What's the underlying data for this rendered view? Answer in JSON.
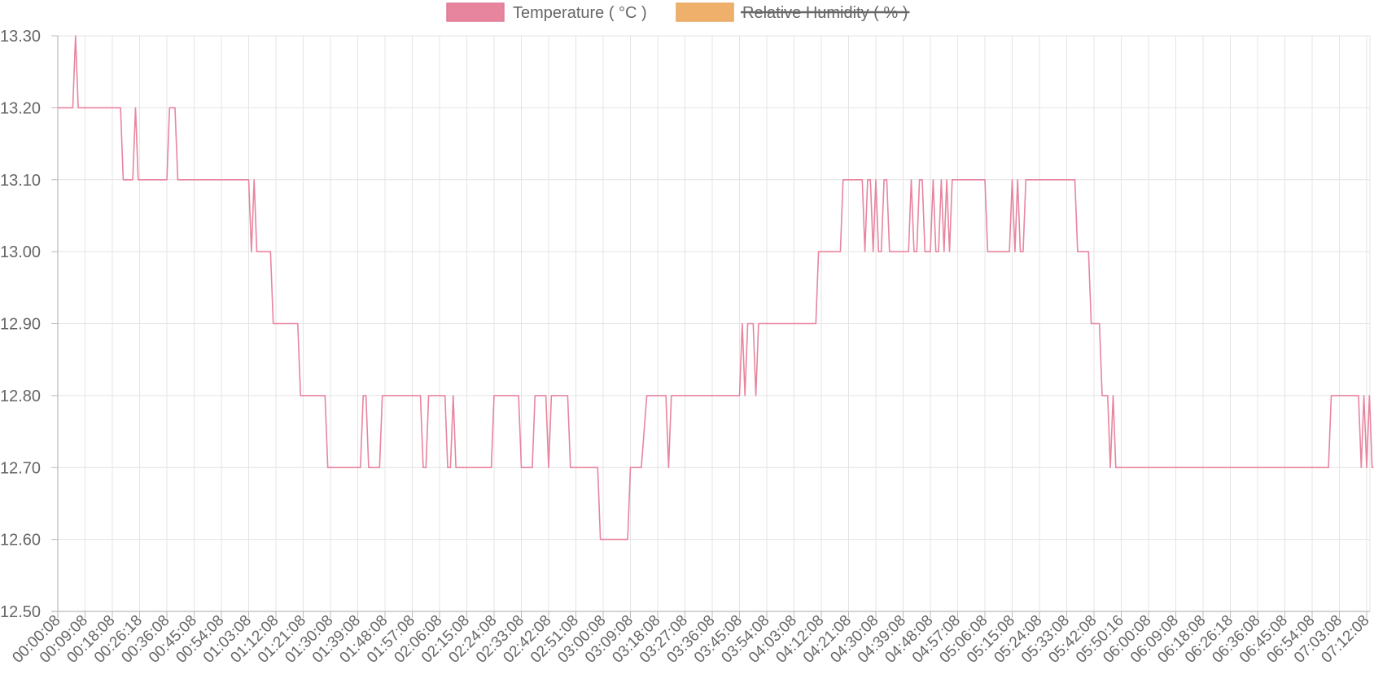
{
  "chart_data": {
    "type": "line",
    "legend": {
      "position": "top",
      "items": [
        {
          "label": "Temperature ( °C )",
          "color": "#e7859f",
          "hidden": false
        },
        {
          "label": "Relative Humidity ( % )",
          "color": "#efb06b",
          "hidden": true
        }
      ]
    },
    "y_axis": {
      "min": 12.5,
      "max": 13.3,
      "step": 0.1,
      "tick_labels": [
        "13.30",
        "13.20",
        "13.10",
        "13.00",
        "12.90",
        "12.80",
        "12.70",
        "12.60",
        "12.50"
      ]
    },
    "x_axis": {
      "tick_labels": [
        "00:00:08",
        "00:09:08",
        "00:18:08",
        "00:26:18",
        "00:36:08",
        "00:45:08",
        "00:54:08",
        "01:03:08",
        "01:12:08",
        "01:21:08",
        "01:30:08",
        "01:39:08",
        "01:48:08",
        "01:57:08",
        "02:06:08",
        "02:15:08",
        "02:24:08",
        "02:33:08",
        "02:42:08",
        "02:51:08",
        "03:00:08",
        "03:09:08",
        "03:18:08",
        "03:27:08",
        "03:36:08",
        "03:45:08",
        "03:54:08",
        "04:03:08",
        "04:12:08",
        "04:21:08",
        "04:30:08",
        "04:39:08",
        "04:48:08",
        "04:57:08",
        "05:06:08",
        "05:15:08",
        "05:24:08",
        "05:33:08",
        "05:42:08",
        "05:50:16",
        "06:00:08",
        "06:09:08",
        "06:18:08",
        "06:26:18",
        "06:36:08",
        "06:45:08",
        "06:54:08",
        "07:03:08",
        "07:12:08"
      ],
      "tick_positions": [
        0,
        1,
        2,
        3,
        4,
        5,
        6,
        7,
        8,
        9,
        10,
        11,
        12,
        13,
        14,
        15,
        16,
        17,
        18,
        19,
        20,
        21,
        22,
        23,
        24,
        25,
        26,
        27,
        28,
        29,
        30,
        31,
        32,
        33,
        34,
        35,
        36,
        37,
        38,
        39,
        40,
        41,
        42,
        43,
        44,
        45,
        46,
        47,
        48
      ],
      "max_index": 48.25
    },
    "grid": true,
    "series": [
      {
        "name": "Temperature ( °C )",
        "color": "#e7859f",
        "points": [
          [
            0,
            13.2
          ],
          [
            0.55,
            13.2
          ],
          [
            0.65,
            13.3
          ],
          [
            0.75,
            13.2
          ],
          [
            2.3,
            13.2
          ],
          [
            2.4,
            13.1
          ],
          [
            2.75,
            13.1
          ],
          [
            2.85,
            13.2
          ],
          [
            2.95,
            13.1
          ],
          [
            4.0,
            13.1
          ],
          [
            4.1,
            13.2
          ],
          [
            4.3,
            13.2
          ],
          [
            4.4,
            13.1
          ],
          [
            7.0,
            13.1
          ],
          [
            7.1,
            13.0
          ],
          [
            7.2,
            13.1
          ],
          [
            7.3,
            13.0
          ],
          [
            7.8,
            13.0
          ],
          [
            7.9,
            12.9
          ],
          [
            8.8,
            12.9
          ],
          [
            8.9,
            12.8
          ],
          [
            9.8,
            12.8
          ],
          [
            9.9,
            12.7
          ],
          [
            11.1,
            12.7
          ],
          [
            11.2,
            12.8
          ],
          [
            11.3,
            12.8
          ],
          [
            11.4,
            12.7
          ],
          [
            11.8,
            12.7
          ],
          [
            11.9,
            12.8
          ],
          [
            13.3,
            12.8
          ],
          [
            13.4,
            12.7
          ],
          [
            13.5,
            12.7
          ],
          [
            13.6,
            12.8
          ],
          [
            14.2,
            12.8
          ],
          [
            14.3,
            12.7
          ],
          [
            14.4,
            12.7
          ],
          [
            14.5,
            12.8
          ],
          [
            14.6,
            12.7
          ],
          [
            15.9,
            12.7
          ],
          [
            16.0,
            12.8
          ],
          [
            16.9,
            12.8
          ],
          [
            17.0,
            12.7
          ],
          [
            17.4,
            12.7
          ],
          [
            17.5,
            12.8
          ],
          [
            17.9,
            12.8
          ],
          [
            18.0,
            12.7
          ],
          [
            18.1,
            12.8
          ],
          [
            18.7,
            12.8
          ],
          [
            18.8,
            12.7
          ],
          [
            19.8,
            12.7
          ],
          [
            19.9,
            12.6
          ],
          [
            20.9,
            12.6
          ],
          [
            21.0,
            12.7
          ],
          [
            21.4,
            12.7
          ],
          [
            21.6,
            12.8
          ],
          [
            22.3,
            12.8
          ],
          [
            22.4,
            12.7
          ],
          [
            22.5,
            12.8
          ],
          [
            25.0,
            12.8
          ],
          [
            25.1,
            12.9
          ],
          [
            25.2,
            12.8
          ],
          [
            25.3,
            12.9
          ],
          [
            25.5,
            12.9
          ],
          [
            25.6,
            12.8
          ],
          [
            25.7,
            12.9
          ],
          [
            27.8,
            12.9
          ],
          [
            27.9,
            13.0
          ],
          [
            28.7,
            13.0
          ],
          [
            28.8,
            13.1
          ],
          [
            29.5,
            13.1
          ],
          [
            29.6,
            13.0
          ],
          [
            29.7,
            13.1
          ],
          [
            29.8,
            13.1
          ],
          [
            29.9,
            13.0
          ],
          [
            30.0,
            13.1
          ],
          [
            30.1,
            13.0
          ],
          [
            30.2,
            13.0
          ],
          [
            30.3,
            13.1
          ],
          [
            30.4,
            13.1
          ],
          [
            30.5,
            13.0
          ],
          [
            31.2,
            13.0
          ],
          [
            31.3,
            13.1
          ],
          [
            31.4,
            13.0
          ],
          [
            31.5,
            13.0
          ],
          [
            31.6,
            13.1
          ],
          [
            31.7,
            13.1
          ],
          [
            31.8,
            13.0
          ],
          [
            32.0,
            13.0
          ],
          [
            32.1,
            13.1
          ],
          [
            32.2,
            13.0
          ],
          [
            32.3,
            13.0
          ],
          [
            32.4,
            13.1
          ],
          [
            32.5,
            13.0
          ],
          [
            32.6,
            13.1
          ],
          [
            32.7,
            13.0
          ],
          [
            32.8,
            13.1
          ],
          [
            34.0,
            13.1
          ],
          [
            34.1,
            13.0
          ],
          [
            34.9,
            13.0
          ],
          [
            35.0,
            13.1
          ],
          [
            35.1,
            13.0
          ],
          [
            35.2,
            13.1
          ],
          [
            35.3,
            13.0
          ],
          [
            35.4,
            13.0
          ],
          [
            35.5,
            13.1
          ],
          [
            37.3,
            13.1
          ],
          [
            37.4,
            13.0
          ],
          [
            37.8,
            13.0
          ],
          [
            37.9,
            12.9
          ],
          [
            38.2,
            12.9
          ],
          [
            38.3,
            12.8
          ],
          [
            38.5,
            12.8
          ],
          [
            38.6,
            12.7
          ],
          [
            38.7,
            12.8
          ],
          [
            38.8,
            12.7
          ],
          [
            46.6,
            12.7
          ],
          [
            46.7,
            12.8
          ],
          [
            47.7,
            12.8
          ],
          [
            47.8,
            12.7
          ],
          [
            47.9,
            12.8
          ],
          [
            48.0,
            12.7
          ],
          [
            48.1,
            12.8
          ],
          [
            48.2,
            12.7
          ],
          [
            48.25,
            12.7
          ]
        ]
      }
    ]
  }
}
